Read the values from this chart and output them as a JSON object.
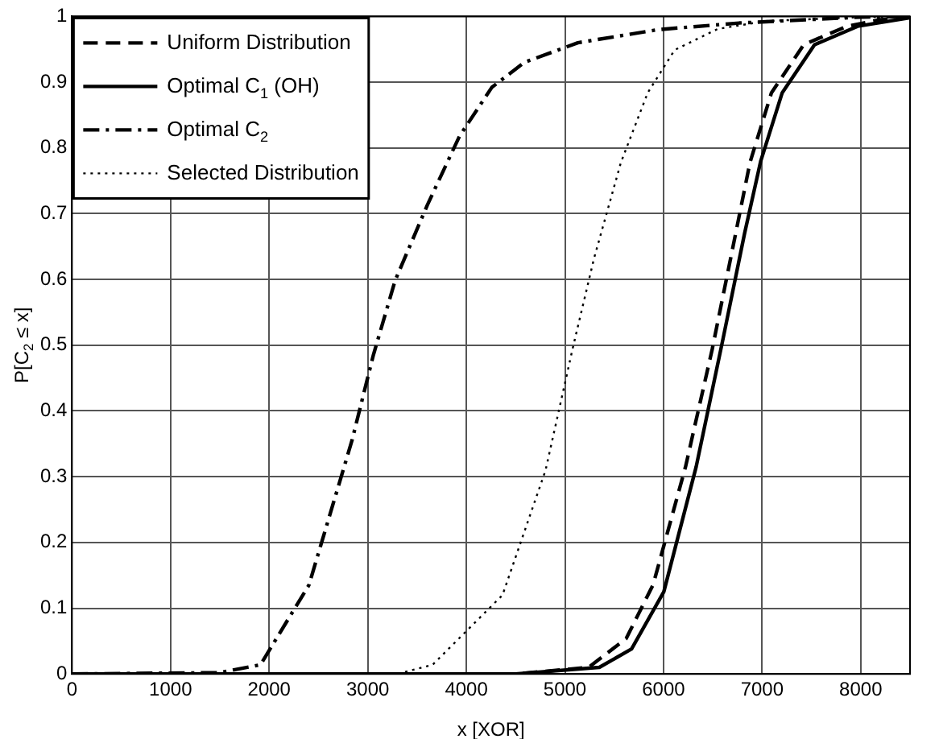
{
  "chart_data": {
    "type": "line",
    "xlabel": "x [XOR]",
    "ylabel": "P[C$_{2}$ ≤ x]",
    "xlim": [
      0,
      8500
    ],
    "xticks": [
      0,
      1000,
      2000,
      3000,
      4000,
      5000,
      6000,
      7000,
      8000
    ],
    "ylim": [
      0,
      1
    ],
    "yticks": [
      0,
      0.1,
      0.2,
      0.3,
      0.4,
      0.5,
      0.6,
      0.7,
      0.8,
      0.9,
      1
    ],
    "grid": true,
    "legend": "top left",
    "marker": "none",
    "series": [
      {
        "name": "Uniform Distribution",
        "color": "#000000",
        "line_style": "dashed",
        "x": [
          0,
          4500,
          5241,
          5622,
          5895,
          6223,
          6494,
          6713,
          6877,
          7095,
          7422,
          7859,
          8200,
          8500
        ],
        "values": [
          0,
          0,
          0.01,
          0.054,
          0.136,
          0.315,
          0.494,
          0.656,
          0.778,
          0.884,
          0.957,
          0.985,
          0.995,
          0.999
        ]
      },
      {
        "name": "Optimal C$_{1}$ (OH)",
        "color": "#000000",
        "line_style": "solid",
        "x": [
          0,
          4500,
          5349,
          5676,
          6003,
          6331,
          6604,
          6822,
          6986,
          7204,
          7532,
          7968,
          8500
        ],
        "values": [
          0,
          0,
          0.01,
          0.038,
          0.125,
          0.315,
          0.51,
          0.67,
          0.78,
          0.884,
          0.957,
          0.985,
          0.998
        ]
      },
      {
        "name": "Optimal C$_{2}$",
        "color": "#000000",
        "line_style": "dashdot",
        "x": [
          0,
          1500,
          1912,
          2403,
          2840,
          3057,
          3277,
          3604,
          3931,
          4258,
          4586,
          5131,
          5949,
          6768,
          8000,
          8500
        ],
        "values": [
          0,
          0.002,
          0.014,
          0.135,
          0.355,
          0.485,
          0.598,
          0.713,
          0.818,
          0.892,
          0.93,
          0.96,
          0.98,
          0.99,
          0.999,
          1
        ]
      },
      {
        "name": "Selected Distribution",
        "color": "#000000",
        "line_style": "dotted",
        "x": [
          0,
          3300,
          3658,
          4367,
          4804,
          5077,
          5295,
          5568,
          5840,
          6113,
          6550,
          7041,
          8000,
          8500
        ],
        "values": [
          0,
          0,
          0.014,
          0.12,
          0.31,
          0.494,
          0.632,
          0.778,
          0.884,
          0.949,
          0.981,
          0.993,
          0.999,
          1
        ]
      }
    ]
  }
}
